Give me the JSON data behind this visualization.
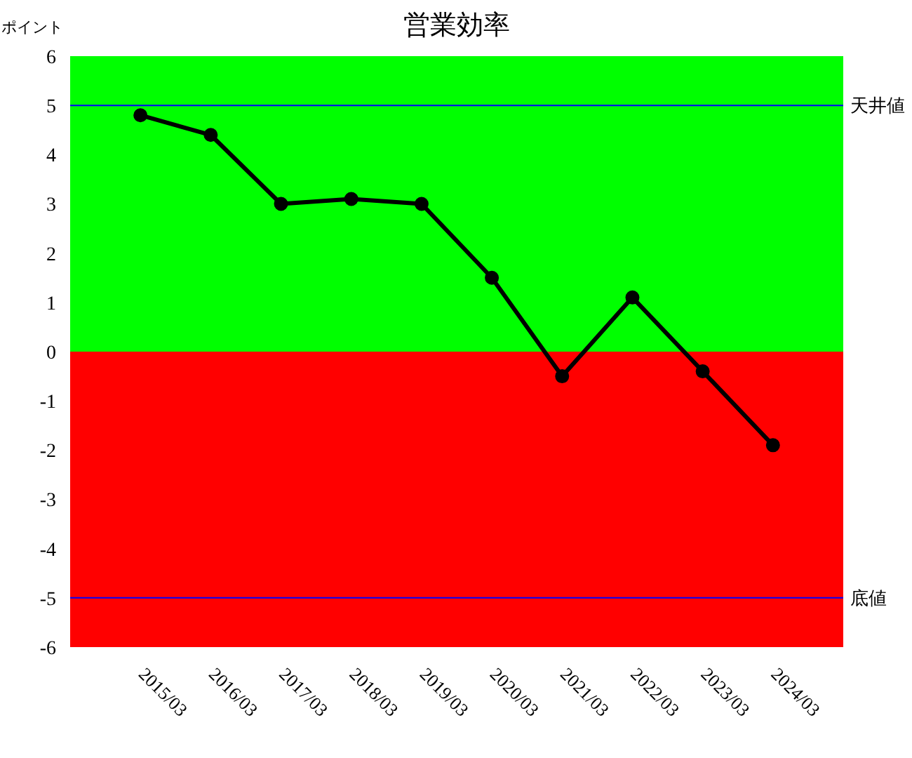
{
  "chart_data": {
    "type": "line",
    "title": "営業効率",
    "ylabel": "ポイント",
    "categories": [
      "2015/03",
      "2016/03",
      "2017/03",
      "2018/03",
      "2019/03",
      "2020/03",
      "2021/03",
      "2022/03",
      "2023/03",
      "2024/03"
    ],
    "values": [
      4.8,
      4.4,
      3.0,
      3.1,
      3.0,
      1.5,
      -0.5,
      1.1,
      -0.4,
      -1.9
    ],
    "color": "#000000",
    "ylim": [
      -6,
      6
    ],
    "yticks": [
      -6,
      -5,
      -4,
      -3,
      -2,
      -1,
      0,
      1,
      2,
      3,
      4,
      5,
      6
    ],
    "bands": [
      {
        "axis": "y",
        "from": 0,
        "to": 6,
        "color": "#00ff00"
      },
      {
        "axis": "y",
        "from": -6,
        "to": 0,
        "color": "#ff0000"
      }
    ],
    "ref_lines": [
      {
        "axis": "y",
        "value": 5,
        "label": "天井値",
        "color": "#0000ff"
      },
      {
        "axis": "y",
        "value": -5,
        "label": "底値",
        "color": "#0000ff"
      }
    ],
    "marker": "circle",
    "line_style": "solid"
  }
}
